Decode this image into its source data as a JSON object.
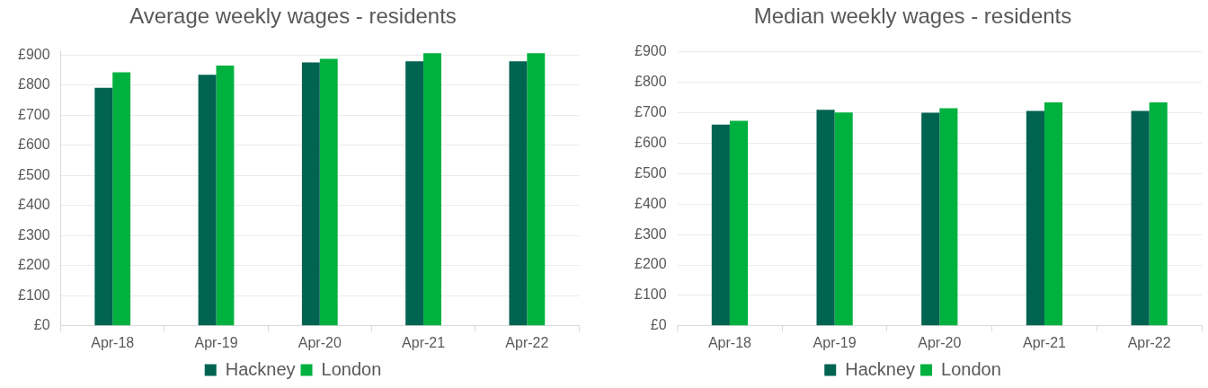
{
  "chart_data": [
    {
      "type": "bar",
      "title": "Average weekly wages - residents",
      "categories": [
        "Apr-18",
        "Apr-19",
        "Apr-20",
        "Apr-21",
        "Apr-22"
      ],
      "series": [
        {
          "name": "Hackney",
          "color": "#006450",
          "values": [
            791,
            834,
            875,
            879,
            879
          ]
        },
        {
          "name": "London",
          "color": "#00b140",
          "values": [
            842,
            865,
            887,
            906,
            906
          ]
        }
      ],
      "ylim": [
        0,
        910
      ],
      "yticks": [
        {
          "value": 0,
          "label": "£0"
        },
        {
          "value": 100,
          "label": "£100"
        },
        {
          "value": 200,
          "label": "£200"
        },
        {
          "value": 300,
          "label": "£300"
        },
        {
          "value": 400,
          "label": "£400"
        },
        {
          "value": 500,
          "label": "£500"
        },
        {
          "value": 600,
          "label": "£600"
        },
        {
          "value": 700,
          "label": "£700"
        },
        {
          "value": 800,
          "label": "£800"
        },
        {
          "value": 900,
          "label": "£900"
        }
      ],
      "grid": "y",
      "legend": "bottom"
    },
    {
      "type": "bar",
      "title": "Median weekly wages - residents",
      "categories": [
        "Apr-18",
        "Apr-19",
        "Apr-20",
        "Apr-21",
        "Apr-22"
      ],
      "series": [
        {
          "name": "Hackney",
          "color": "#006450",
          "values": [
            661,
            710,
            700,
            706,
            706
          ]
        },
        {
          "name": "London",
          "color": "#00b140",
          "values": [
            674,
            701,
            715,
            734,
            734
          ]
        }
      ],
      "ylim": [
        0,
        900
      ],
      "yticks": [
        {
          "value": 0,
          "label": "£0"
        },
        {
          "value": 100,
          "label": "£100"
        },
        {
          "value": 200,
          "label": "£200"
        },
        {
          "value": 300,
          "label": "£300"
        },
        {
          "value": 400,
          "label": "£400"
        },
        {
          "value": 500,
          "label": "£500"
        },
        {
          "value": 600,
          "label": "£600"
        },
        {
          "value": 700,
          "label": "£700"
        },
        {
          "value": 800,
          "label": "£800"
        },
        {
          "value": 900,
          "label": "£900"
        }
      ],
      "grid": "y",
      "legend": "bottom"
    }
  ]
}
